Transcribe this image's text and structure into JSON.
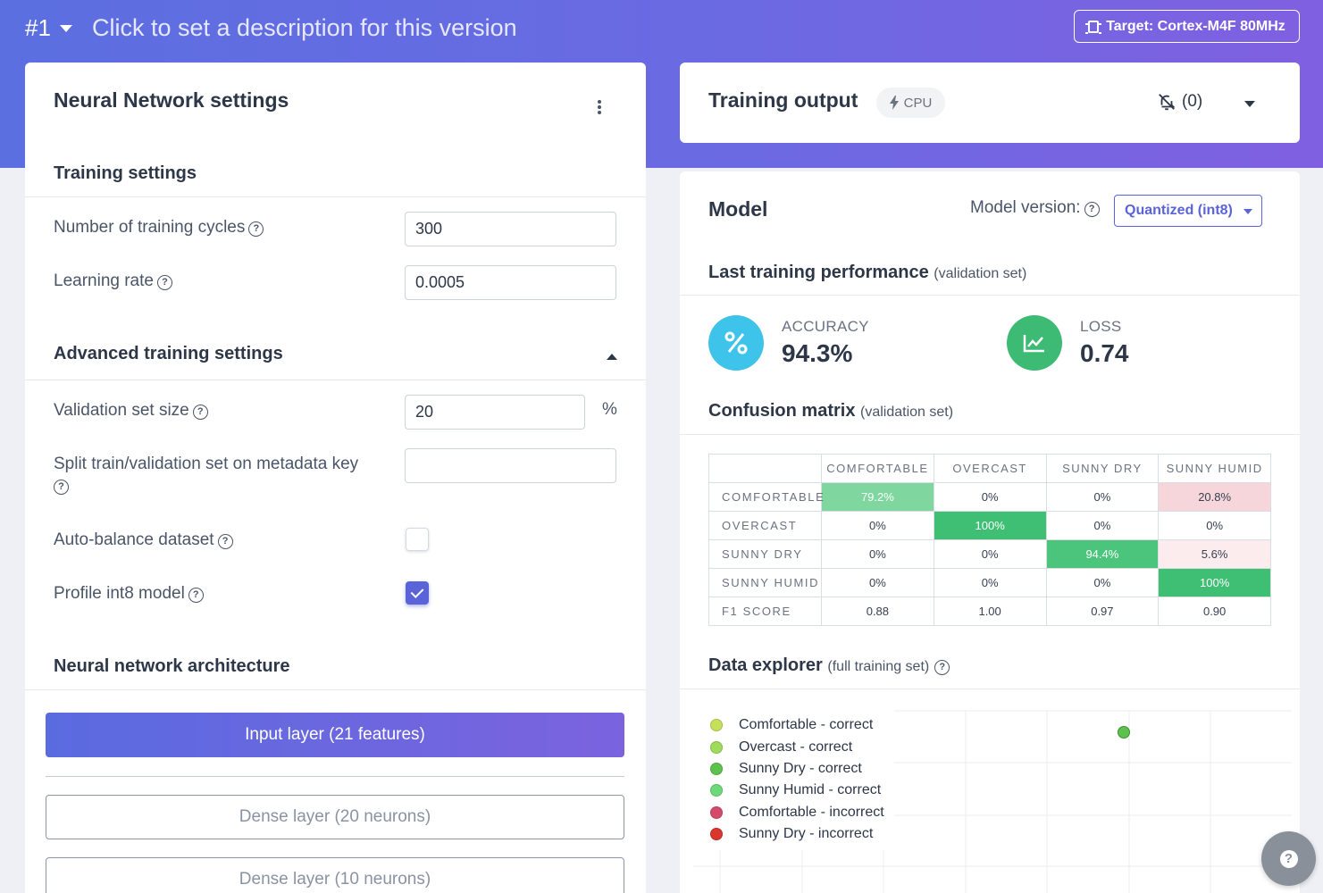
{
  "topbar": {
    "version": "#1",
    "description": "Click to set a description for this version",
    "target": "Target: Cortex-M4F 80MHz"
  },
  "nn_settings": {
    "title": "Neural Network settings",
    "training_section": "Training settings",
    "cycles_label": "Number of training cycles",
    "cycles_value": "300",
    "lr_label": "Learning rate",
    "lr_value": "0.0005",
    "advanced_section": "Advanced training settings",
    "val_size_label": "Validation set size",
    "val_size_value": "20",
    "val_size_unit": "%",
    "split_label": "Split train/validation set on metadata key",
    "split_value": "",
    "autobalance_label": "Auto-balance dataset",
    "autobalance_checked": false,
    "profile_label": "Profile int8 model",
    "profile_checked": true,
    "architecture_section": "Neural network architecture",
    "layers": [
      "Input layer (21 features)",
      "Dense layer (20 neurons)",
      "Dense layer (10 neurons)"
    ]
  },
  "training_output": {
    "title": "Training output",
    "device": "CPU",
    "notifications": "(0)"
  },
  "model": {
    "title": "Model",
    "version_label": "Model version:",
    "version_value": "Quantized (int8)",
    "perf_title": "Last training performance",
    "perf_sub": "(validation set)",
    "accuracy_label": "ACCURACY",
    "accuracy_value": "94.3%",
    "loss_label": "LOSS",
    "loss_value": "0.74",
    "cm_title": "Confusion matrix",
    "cm_sub": "(validation set)",
    "cm_columns": [
      "COMFORTABLE",
      "OVERCAST",
      "SUNNY DRY",
      "SUNNY HUMID"
    ],
    "cm_rows": [
      {
        "label": "COMFORTABLE",
        "cells": [
          "79.2%",
          "0%",
          "0%",
          "20.8%"
        ]
      },
      {
        "label": "OVERCAST",
        "cells": [
          "0%",
          "100%",
          "0%",
          "0%"
        ]
      },
      {
        "label": "SUNNY DRY",
        "cells": [
          "0%",
          "0%",
          "94.4%",
          "5.6%"
        ]
      },
      {
        "label": "SUNNY HUMID",
        "cells": [
          "0%",
          "0%",
          "0%",
          "100%"
        ]
      },
      {
        "label": "F1 SCORE",
        "cells": [
          "0.88",
          "1.00",
          "0.97",
          "0.90"
        ]
      }
    ],
    "explorer_title": "Data explorer",
    "explorer_sub": "(full training set)",
    "legend": [
      {
        "label": "Comfortable - correct",
        "color": "#c5e15a"
      },
      {
        "label": "Overcast - correct",
        "color": "#9fdc5c"
      },
      {
        "label": "Sunny Dry - correct",
        "color": "#5cc24d"
      },
      {
        "label": "Sunny Humid - correct",
        "color": "#6fd97a"
      },
      {
        "label": "Comfortable - incorrect",
        "color": "#d44a6a"
      },
      {
        "label": "Sunny Dry - incorrect",
        "color": "#d9362e"
      }
    ]
  },
  "colors": {
    "accent": "#5a64d8",
    "accuracy_circle": "#3ec3ea",
    "loss_circle": "#3dbb75",
    "cm_strong": "#3fbf73",
    "cm_medium": "#7fd79f",
    "cm_error_strong": "#f6d6db",
    "cm_error_light": "#fcecee"
  }
}
